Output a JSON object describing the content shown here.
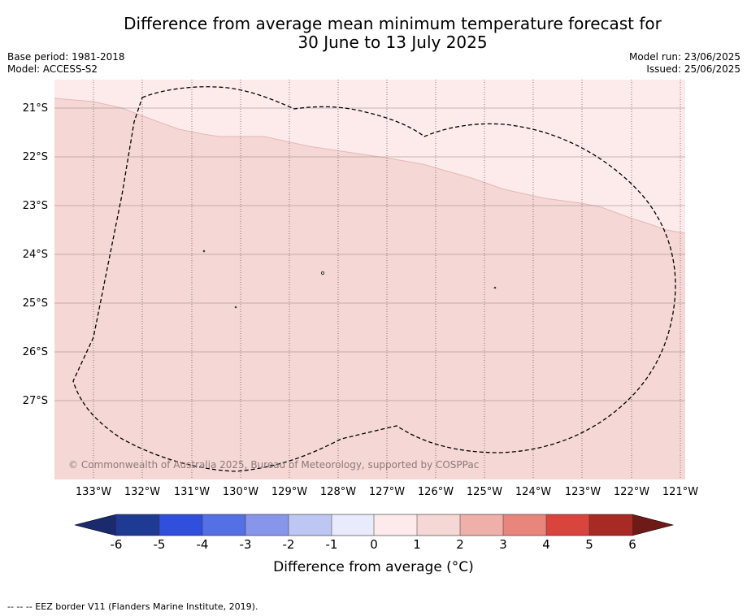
{
  "title_line1": "Difference from average mean minimum temperature forecast for",
  "title_line2": "30 June to 13 July 2025",
  "base_period": "Base period: 1981-2018",
  "model": "Model: ACCESS-S2",
  "model_run": "Model run: 23/06/2025",
  "issued": "Issued: 25/06/2025",
  "lat_labels": [
    "21°S",
    "22°S",
    "23°S",
    "24°S",
    "25°S",
    "26°S",
    "27°S"
  ],
  "lon_labels": [
    "133°W",
    "132°W",
    "131°W",
    "130°W",
    "129°W",
    "128°W",
    "127°W",
    "126°W",
    "125°W",
    "124°W",
    "123°W",
    "122°W",
    "121°W"
  ],
  "copyright": "© Commonwealth of Australia 2025, Bureau of Meteorology, supported by COSPPac",
  "colorbar": {
    "ticks": [
      "-6",
      "-5",
      "-4",
      "-3",
      "-2",
      "-1",
      "0",
      "1",
      "2",
      "3",
      "4",
      "5",
      "6"
    ],
    "colors": [
      "#1f3a93",
      "#2f4fdc",
      "#5570e4",
      "#8796ea",
      "#bec7f4",
      "#e7ebfb",
      "#fcebea",
      "#f5d7d5",
      "#efb0aa",
      "#e8857d",
      "#d9453d",
      "#a82a24"
    ],
    "under_color": "#1a2a6c",
    "over_color": "#6e1a16",
    "label": "Difference from average (°C)"
  },
  "map_colors": {
    "anomaly_0_1": "#fcebea",
    "anomaly_1_2": "#f5d7d5",
    "eez_border": "#000000"
  },
  "legend_footer": "-- -- -- EEZ border V11 (Flanders Marine Institute, 2019)."
}
